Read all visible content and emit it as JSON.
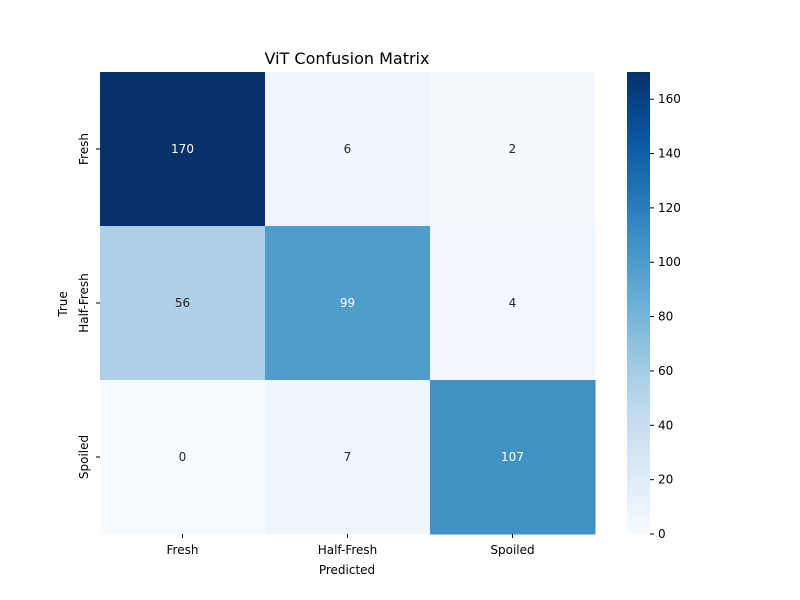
{
  "chart_data": {
    "type": "heatmap",
    "title": "ViT Confusion Matrix",
    "xlabel": "Predicted",
    "ylabel": "True",
    "x_categories": [
      "Fresh",
      "Half-Fresh",
      "Spoiled"
    ],
    "y_categories": [
      "Fresh",
      "Half-Fresh",
      "Spoiled"
    ],
    "values": [
      [
        170,
        6,
        2
      ],
      [
        56,
        99,
        4
      ],
      [
        0,
        7,
        107
      ]
    ],
    "colormap": "Blues",
    "colorbar": {
      "min": 0,
      "max": 170,
      "ticks": [
        0,
        20,
        40,
        60,
        80,
        100,
        120,
        140,
        160
      ]
    },
    "text_colors": {
      "dark": "#262626",
      "light": "#ffffff"
    }
  }
}
